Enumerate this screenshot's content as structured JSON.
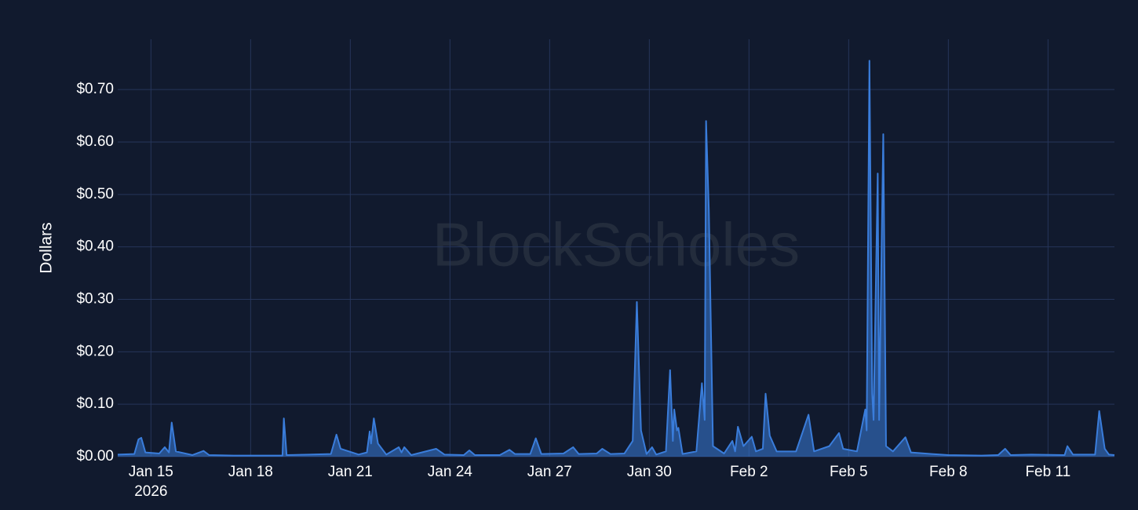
{
  "chart_data": {
    "type": "area",
    "watermark": "BlockScholes",
    "y_label": "Dollars",
    "x_year_label": "2026",
    "xlim": [
      "2026-01-14T00:00",
      "2026-02-13T00:00"
    ],
    "xticks": [
      {
        "value": "2026-01-15T00:00",
        "label": "Jan 15"
      },
      {
        "value": "2026-01-18T00:00",
        "label": "Jan 18"
      },
      {
        "value": "2026-01-21T00:00",
        "label": "Jan 21"
      },
      {
        "value": "2026-01-24T00:00",
        "label": "Jan 24"
      },
      {
        "value": "2026-01-27T00:00",
        "label": "Jan 27"
      },
      {
        "value": "2026-01-30T00:00",
        "label": "Jan 30"
      },
      {
        "value": "2026-02-02T00:00",
        "label": "Feb 2"
      },
      {
        "value": "2026-02-05T00:00",
        "label": "Feb 5"
      },
      {
        "value": "2026-02-08T00:00",
        "label": "Feb 8"
      },
      {
        "value": "2026-02-11T00:00",
        "label": "Feb 11"
      }
    ],
    "ylim": [
      0,
      0.796
    ],
    "yticks": [
      {
        "value": 0,
        "label": "$0.00"
      },
      {
        "value": 0.1,
        "label": "$0.10"
      },
      {
        "value": 0.2,
        "label": "$0.20"
      },
      {
        "value": 0.3,
        "label": "$0.30"
      },
      {
        "value": 0.4,
        "label": "$0.40"
      },
      {
        "value": 0.5,
        "label": "$0.50"
      },
      {
        "value": 0.6,
        "label": "$0.60"
      },
      {
        "value": 0.7,
        "label": "$0.70"
      }
    ],
    "grid": true,
    "x": [
      "2026-01-14T00:00",
      "2026-01-14T12:00",
      "2026-01-14T15:00",
      "2026-01-14T17:00",
      "2026-01-14T20:00",
      "2026-01-15T06:00",
      "2026-01-15T10:00",
      "2026-01-15T13:00",
      "2026-01-15T15:00",
      "2026-01-15T18:00",
      "2026-01-16T06:00",
      "2026-01-16T14:00",
      "2026-01-16T18:00",
      "2026-01-17T12:00",
      "2026-01-18T00:00",
      "2026-01-18T12:00",
      "2026-01-18T23:00",
      "2026-01-19T00:00",
      "2026-01-19T02:00",
      "2026-01-19T18:00",
      "2026-01-20T10:00",
      "2026-01-20T14:00",
      "2026-01-20T17:00",
      "2026-01-21T06:00",
      "2026-01-21T12:00",
      "2026-01-21T14:00",
      "2026-01-21T15:00",
      "2026-01-21T17:00",
      "2026-01-21T20:00",
      "2026-01-22T02:00",
      "2026-01-22T11:00",
      "2026-01-22T13:00",
      "2026-01-22T15:00",
      "2026-01-22T20:00",
      "2026-01-23T14:00",
      "2026-01-23T20:00",
      "2026-01-24T10:00",
      "2026-01-24T14:00",
      "2026-01-24T18:00",
      "2026-01-25T12:00",
      "2026-01-25T19:00",
      "2026-01-25T23:00",
      "2026-01-26T10:00",
      "2026-01-26T14:00",
      "2026-01-26T18:00",
      "2026-01-27T10:00",
      "2026-01-27T17:00",
      "2026-01-27T21:00",
      "2026-01-28T10:00",
      "2026-01-28T14:00",
      "2026-01-28T20:00",
      "2026-01-29T06:00",
      "2026-01-29T12:00",
      "2026-01-29T15:00",
      "2026-01-29T18:00",
      "2026-01-29T22:00",
      "2026-01-30T02:00",
      "2026-01-30T05:00",
      "2026-01-30T12:00",
      "2026-01-30T15:00",
      "2026-01-30T17:00",
      "2026-01-30T18:00",
      "2026-01-30T20:00",
      "2026-01-30T21:00",
      "2026-01-31T00:00",
      "2026-01-31T10:00",
      "2026-01-31T14:00",
      "2026-01-31T16:00",
      "2026-01-31T17:00",
      "2026-01-31T19:00",
      "2026-01-31T22:00",
      "2026-02-01T06:00",
      "2026-02-01T12:00",
      "2026-02-01T14:00",
      "2026-02-01T16:00",
      "2026-02-01T20:00",
      "2026-02-02T02:00",
      "2026-02-02T05:00",
      "2026-02-02T10:00",
      "2026-02-02T12:00",
      "2026-02-02T15:00",
      "2026-02-02T20:00",
      "2026-02-03T10:00",
      "2026-02-03T19:00",
      "2026-02-03T23:00",
      "2026-02-04T10:00",
      "2026-02-04T17:00",
      "2026-02-04T20:00",
      "2026-02-05T06:00",
      "2026-02-05T12:00",
      "2026-02-05T13:00",
      "2026-02-05T15:00",
      "2026-02-05T17:00",
      "2026-02-05T18:00",
      "2026-02-05T21:00",
      "2026-02-05T22:00",
      "2026-02-06T01:00",
      "2026-02-06T03:00",
      "2026-02-06T08:00",
      "2026-02-06T17:00",
      "2026-02-06T21:00",
      "2026-02-07T12:00",
      "2026-02-08T00:00",
      "2026-02-09T00:00",
      "2026-02-09T12:00",
      "2026-02-09T17:00",
      "2026-02-09T21:00",
      "2026-02-10T12:00",
      "2026-02-11T12:00",
      "2026-02-11T14:00",
      "2026-02-11T18:00",
      "2026-02-12T10:00",
      "2026-02-12T13:00",
      "2026-02-12T17:00",
      "2026-02-12T20:00",
      "2026-02-13T00:00"
    ],
    "series": [
      {
        "color": "#3a7ddb",
        "values": [
          0.004,
          0.005,
          0.033,
          0.036,
          0.008,
          0.006,
          0.018,
          0.008,
          0.065,
          0.01,
          0.003,
          0.011,
          0.003,
          0.002,
          0.002,
          0.002,
          0.002,
          0.073,
          0.003,
          0.004,
          0.005,
          0.042,
          0.015,
          0.004,
          0.008,
          0.048,
          0.025,
          0.073,
          0.025,
          0.004,
          0.018,
          0.008,
          0.018,
          0.003,
          0.015,
          0.004,
          0.003,
          0.012,
          0.003,
          0.003,
          0.013,
          0.005,
          0.005,
          0.035,
          0.005,
          0.006,
          0.018,
          0.005,
          0.006,
          0.015,
          0.005,
          0.006,
          0.03,
          0.295,
          0.05,
          0.005,
          0.018,
          0.004,
          0.01,
          0.165,
          0.03,
          0.09,
          0.05,
          0.055,
          0.005,
          0.01,
          0.14,
          0.07,
          0.64,
          0.47,
          0.02,
          0.006,
          0.03,
          0.01,
          0.057,
          0.02,
          0.038,
          0.01,
          0.015,
          0.12,
          0.04,
          0.01,
          0.01,
          0.08,
          0.01,
          0.02,
          0.045,
          0.015,
          0.01,
          0.09,
          0.05,
          0.755,
          0.12,
          0.07,
          0.54,
          0.07,
          0.615,
          0.02,
          0.01,
          0.037,
          0.008,
          0.005,
          0.003,
          0.002,
          0.003,
          0.015,
          0.003,
          0.004,
          0.003,
          0.02,
          0.004,
          0.004,
          0.087,
          0.015,
          0.004,
          0.003
        ]
      }
    ]
  }
}
